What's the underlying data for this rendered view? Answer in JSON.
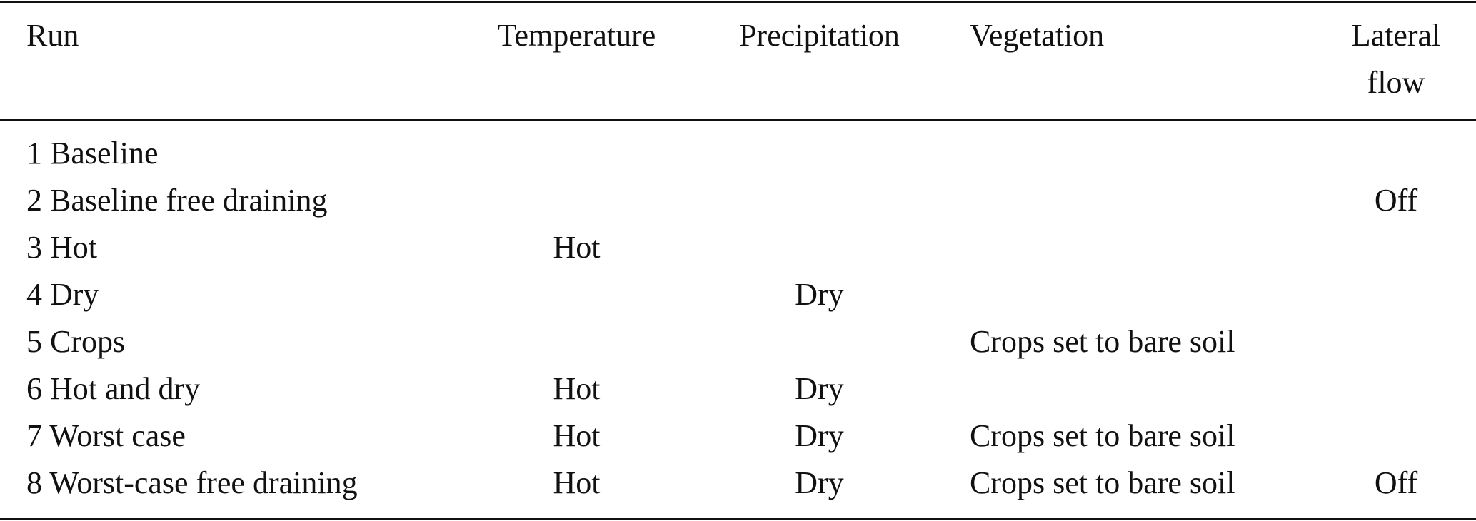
{
  "table": {
    "headers": {
      "run": "Run",
      "temperature": "Temperature",
      "precipitation": "Precipitation",
      "vegetation": "Vegetation",
      "lateral_flow_line1": "Lateral",
      "lateral_flow_line2": "flow"
    },
    "rows": [
      {
        "run": "1 Baseline",
        "temperature": "",
        "precipitation": "",
        "vegetation": "",
        "lateral_flow": ""
      },
      {
        "run": "2 Baseline free draining",
        "temperature": "",
        "precipitation": "",
        "vegetation": "",
        "lateral_flow": "Off"
      },
      {
        "run": "3 Hot",
        "temperature": "Hot",
        "precipitation": "",
        "vegetation": "",
        "lateral_flow": ""
      },
      {
        "run": "4 Dry",
        "temperature": "",
        "precipitation": "Dry",
        "vegetation": "",
        "lateral_flow": ""
      },
      {
        "run": "5 Crops",
        "temperature": "",
        "precipitation": "",
        "vegetation": "Crops set to bare soil",
        "lateral_flow": ""
      },
      {
        "run": "6 Hot and dry",
        "temperature": "Hot",
        "precipitation": "Dry",
        "vegetation": "",
        "lateral_flow": ""
      },
      {
        "run": "7 Worst case",
        "temperature": "Hot",
        "precipitation": "Dry",
        "vegetation": "Crops set to bare soil",
        "lateral_flow": ""
      },
      {
        "run": "8 Worst-case free draining",
        "temperature": "Hot",
        "precipitation": "Dry",
        "vegetation": "Crops set to bare soil",
        "lateral_flow": "Off"
      }
    ]
  }
}
